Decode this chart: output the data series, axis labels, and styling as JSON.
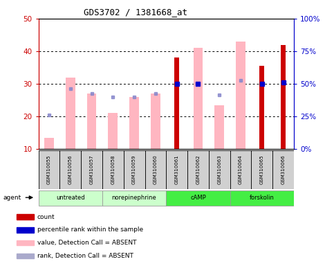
{
  "title": "GDS3702 / 1381668_at",
  "samples": [
    "GSM310055",
    "GSM310056",
    "GSM310057",
    "GSM310058",
    "GSM310059",
    "GSM310060",
    "GSM310061",
    "GSM310062",
    "GSM310063",
    "GSM310064",
    "GSM310065",
    "GSM310066"
  ],
  "count_values": [
    null,
    null,
    null,
    null,
    null,
    null,
    38.0,
    null,
    null,
    null,
    35.5,
    42.0
  ],
  "count_color": "#cc0000",
  "pink_bar_values": [
    13.5,
    32.0,
    27.0,
    21.0,
    26.0,
    27.0,
    null,
    41.0,
    23.5,
    43.0,
    null,
    null
  ],
  "pink_bar_color": "#ffb6c1",
  "blue_sq_values": [
    20.5,
    28.5,
    27.0,
    26.0,
    26.0,
    27.0,
    30.0,
    30.0,
    26.5,
    31.0,
    30.0,
    30.5
  ],
  "blue_sq_color": "#8888cc",
  "blue_dot_present": [
    false,
    false,
    false,
    false,
    false,
    false,
    true,
    true,
    false,
    false,
    true,
    true
  ],
  "blue_dot_color": "#0000cc",
  "ylim_left": [
    10,
    50
  ],
  "ylim_right": [
    0,
    100
  ],
  "yticks_left": [
    10,
    20,
    30,
    40,
    50
  ],
  "yticks_right": [
    0,
    25,
    50,
    75,
    100
  ],
  "ytick_labels_right": [
    "0%",
    "25%",
    "50%",
    "75%",
    "100%"
  ],
  "ylabel_left_color": "#cc0000",
  "ylabel_right_color": "#0000cc",
  "groups_def": [
    {
      "label": "untreated",
      "start": 0,
      "end": 2,
      "color": "#ccffcc"
    },
    {
      "label": "norepinephrine",
      "start": 3,
      "end": 5,
      "color": "#ccffcc"
    },
    {
      "label": "cAMP",
      "start": 6,
      "end": 8,
      "color": "#44ee44"
    },
    {
      "label": "forskolin",
      "start": 9,
      "end": 11,
      "color": "#44ee44"
    }
  ],
  "sample_box_color": "#d0d0d0",
  "legend_data": [
    {
      "color": "#cc0000",
      "label": "count"
    },
    {
      "color": "#0000cc",
      "label": "percentile rank within the sample"
    },
    {
      "color": "#ffb6c1",
      "label": "value, Detection Call = ABSENT"
    },
    {
      "color": "#aaaacc",
      "label": "rank, Detection Call = ABSENT"
    }
  ],
  "background_color": "#ffffff"
}
